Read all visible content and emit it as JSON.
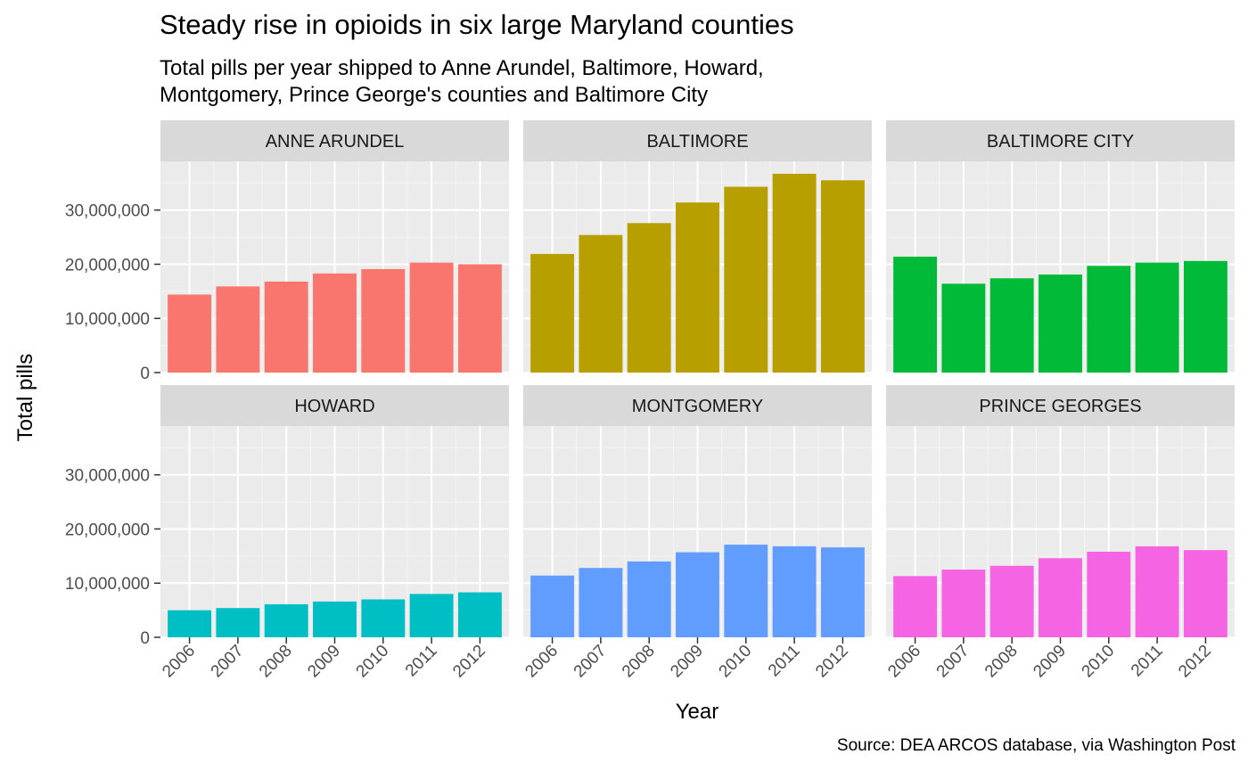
{
  "chart_data": {
    "type": "bar",
    "title": "Steady rise in opioids in six large Maryland counties",
    "subtitle_lines": [
      "Total pills per year shipped to Anne Arundel, Baltimore, Howard,",
      "Montgomery, Prince George's counties and Baltimore City"
    ],
    "caption": "Source: DEA ARCOS database, via Washington Post",
    "xlabel": "Year",
    "ylabel": "Total pills",
    "ylim": [
      0,
      39000000
    ],
    "yticks": [
      0,
      10000000,
      20000000,
      30000000
    ],
    "ytick_labels": [
      "0",
      "10,000,000",
      "20,000,000",
      "30,000,000"
    ],
    "categories": [
      "2006",
      "2007",
      "2008",
      "2009",
      "2010",
      "2011",
      "2012"
    ],
    "grid": true,
    "legend": "none",
    "facets": [
      {
        "name": "ANNE ARUNDEL",
        "color": "#F8766D",
        "values": [
          14400000,
          15900000,
          16800000,
          18300000,
          19100000,
          20300000,
          20000000
        ]
      },
      {
        "name": "BALTIMORE",
        "color": "#B79F00",
        "values": [
          21900000,
          25400000,
          27600000,
          31400000,
          34300000,
          36700000,
          35500000
        ]
      },
      {
        "name": "BALTIMORE CITY",
        "color": "#00BA38",
        "values": [
          21400000,
          16400000,
          17400000,
          18100000,
          19700000,
          20300000,
          20600000
        ]
      },
      {
        "name": "HOWARD",
        "color": "#00BFC4",
        "values": [
          5000000,
          5400000,
          6100000,
          6600000,
          7000000,
          8000000,
          8300000
        ]
      },
      {
        "name": "MONTGOMERY",
        "color": "#619CFF",
        "values": [
          11400000,
          12800000,
          14000000,
          15700000,
          17100000,
          16800000,
          16600000
        ]
      },
      {
        "name": "PRINCE GEORGES",
        "color": "#F564E3",
        "values": [
          11300000,
          12500000,
          13200000,
          14600000,
          15800000,
          16800000,
          16100000
        ]
      }
    ]
  }
}
